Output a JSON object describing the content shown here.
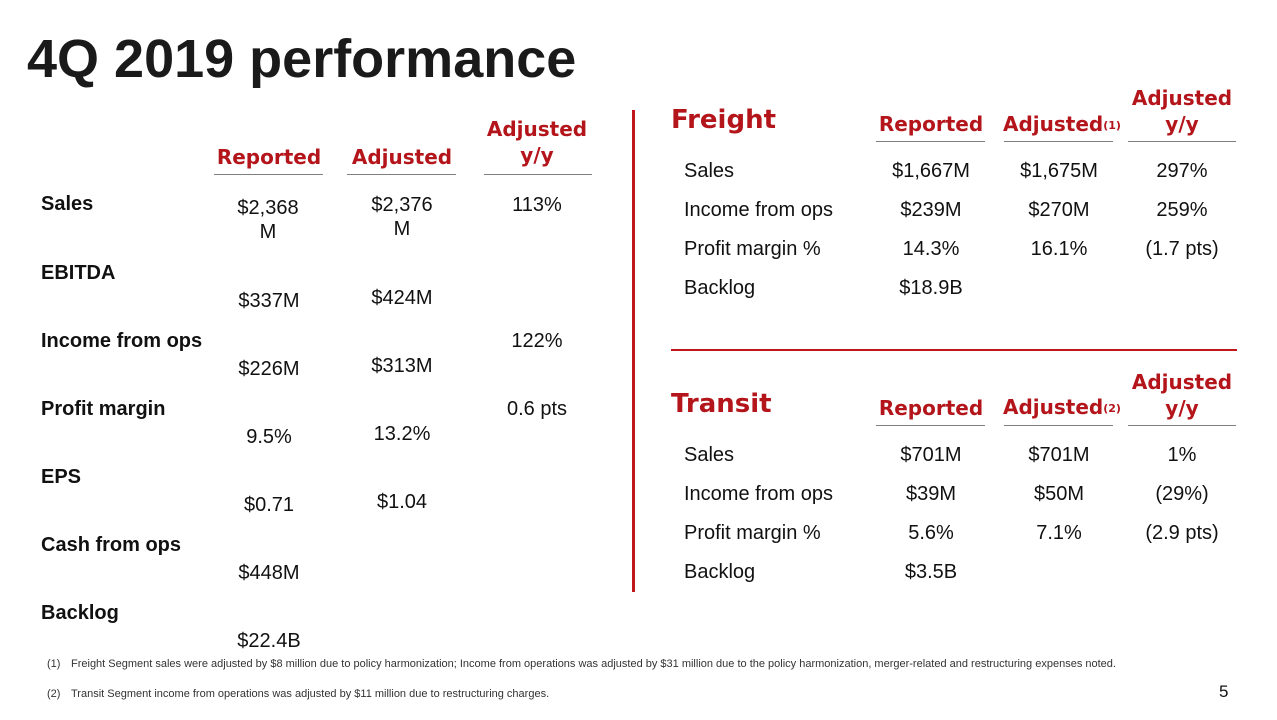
{
  "title": "4Q 2019 performance",
  "colors": {
    "accent": "#b3151b",
    "divider": "#c0161c"
  },
  "left_table": {
    "headers": {
      "reported": "Reported",
      "adjusted": "Adjusted",
      "adjusted_yy_1": "Adjusted",
      "adjusted_yy_2": "y/y"
    },
    "rows": [
      {
        "label": "Sales",
        "reported": "$2,368 M",
        "adjusted": "$2,376 M",
        "yy": "113%"
      },
      {
        "label": "EBITDA",
        "reported": "$337M",
        "adjusted": "$424M",
        "yy": ""
      },
      {
        "label": "Income from ops",
        "reported": "$226M",
        "adjusted": "$313M",
        "yy": "122%"
      },
      {
        "label": "Profit margin",
        "reported": "9.5%",
        "adjusted": "13.2%",
        "yy": "0.6 pts"
      },
      {
        "label": "EPS",
        "reported": "$0.71",
        "adjusted": "$1.04",
        "yy": ""
      },
      {
        "label": "Cash from ops",
        "reported": "$448M",
        "adjusted": "",
        "yy": ""
      },
      {
        "label": "Backlog",
        "reported": "$22.4B",
        "adjusted": "",
        "yy": ""
      }
    ]
  },
  "freight": {
    "title": "Freight",
    "headers": {
      "reported": "Reported",
      "adjusted": "Adjusted",
      "adjusted_note": "(1)",
      "yy_1": "Adjusted",
      "yy_2": "y/y"
    },
    "rows": [
      {
        "label": "Sales",
        "reported": "$1,667M",
        "adjusted": "$1,675M",
        "yy": "297%"
      },
      {
        "label": "Income from ops",
        "reported": "$239M",
        "adjusted": "$270M",
        "yy": "259%"
      },
      {
        "label": "Profit margin %",
        "reported": "14.3%",
        "adjusted": "16.1%",
        "yy": "(1.7 pts)"
      },
      {
        "label": "Backlog",
        "reported": "$18.9B",
        "adjusted": "",
        "yy": ""
      }
    ]
  },
  "transit": {
    "title": "Transit",
    "headers": {
      "reported": "Reported",
      "adjusted": "Adjusted",
      "adjusted_note": "(2)",
      "yy_1": "Adjusted",
      "yy_2": "y/y"
    },
    "rows": [
      {
        "label": "Sales",
        "reported": "$701M",
        "adjusted": "$701M",
        "yy": "1%"
      },
      {
        "label": "Income from ops",
        "reported": "$39M",
        "adjusted": "$50M",
        "yy": "(29%)"
      },
      {
        "label": "Profit margin %",
        "reported": "5.6%",
        "adjusted": "7.1%",
        "yy": "(2.9 pts)"
      },
      {
        "label": "Backlog",
        "reported": "$3.5B",
        "adjusted": "",
        "yy": ""
      }
    ]
  },
  "footnotes": [
    {
      "num": "(1)",
      "text": "Freight Segment sales were adjusted by $8 million due to policy harmonization; Income from operations was adjusted by $31 million due to the policy harmonization, merger-related and restructuring expenses noted."
    },
    {
      "num": "(2)",
      "text": "Transit Segment income from operations was adjusted by $11 million due to restructuring charges."
    }
  ],
  "page_number": "5"
}
